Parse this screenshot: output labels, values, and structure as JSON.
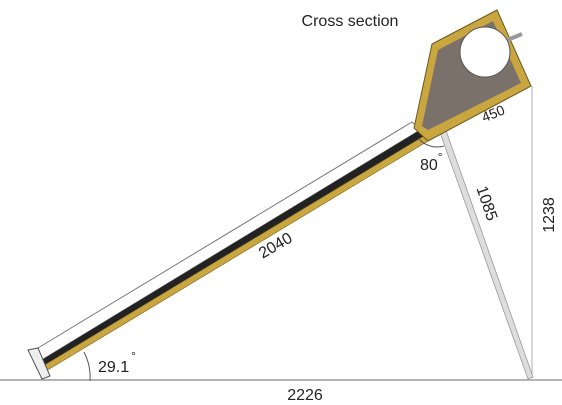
{
  "title": "Cross section",
  "dimensions": {
    "tank_depth": "450",
    "leg": "1085",
    "height": "1238",
    "collector": "2040",
    "base": "2226"
  },
  "angles": [
    {
      "value": "80",
      "unit": "°"
    },
    {
      "value": "29.1",
      "unit": "°"
    }
  ]
}
